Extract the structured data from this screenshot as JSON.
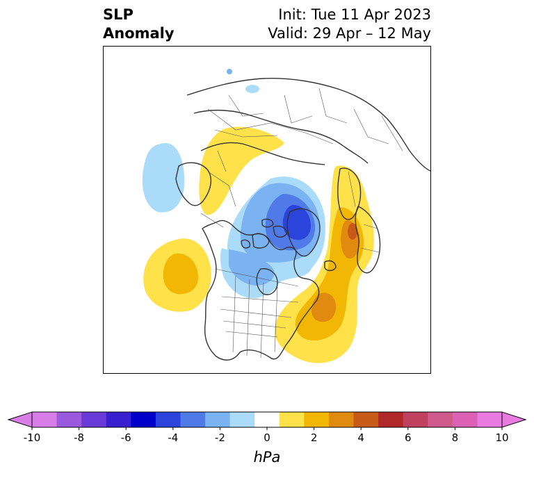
{
  "title": {
    "left_line1": "SLP",
    "left_line2": "Anomaly",
    "init": "Init: Tue 11 Apr 2023",
    "valid": "Valid: 29 Apr – 12 May"
  },
  "map": {
    "region": "North America / North Atlantic (north polar view)",
    "anomalies": [
      {
        "sign": "negative",
        "region": "Arctic Ocean / Greenland",
        "min_hPa": -6
      },
      {
        "sign": "negative",
        "region": "Canadian Arctic / Hudson Bay",
        "min_hPa": -2
      },
      {
        "sign": "negative",
        "region": "North Pacific (west)",
        "min_hPa": -2
      },
      {
        "sign": "positive",
        "region": "Scandinavia / northern Europe",
        "max_hPa": 6
      },
      {
        "sign": "positive",
        "region": "Western North Atlantic / US East Coast",
        "max_hPa": 4
      },
      {
        "sign": "positive",
        "region": "Northeast Pacific",
        "max_hPa": 3
      },
      {
        "sign": "positive",
        "region": "Northern Siberia",
        "max_hPa": 1
      }
    ]
  },
  "colorbar": {
    "unit_label": "hPa",
    "ticks": [
      "-10",
      "-8",
      "-6",
      "-4",
      "-2",
      "0",
      "2",
      "4",
      "6",
      "8",
      "10"
    ],
    "colors": [
      "#d87ce8",
      "#9b59e0",
      "#6a3ad8",
      "#3a1fd0",
      "#0000cc",
      "#2a44dc",
      "#4f7ae8",
      "#7ab2f2",
      "#aadcfa",
      "#ffffff",
      "#ffe14a",
      "#f2b705",
      "#e08a10",
      "#c85a18",
      "#b02828",
      "#c04060",
      "#d05a8c",
      "#dc60b4",
      "#e87ae0"
    ],
    "extend_low_color": "#d87ce8",
    "extend_high_color": "#e87ae0"
  }
}
